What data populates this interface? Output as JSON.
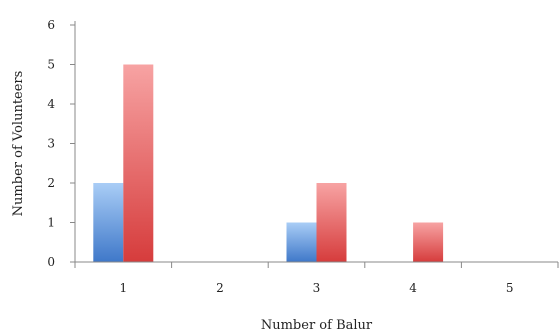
{
  "chart_data": {
    "type": "bar",
    "categories": [
      "1",
      "2",
      "3",
      "4",
      "5"
    ],
    "series": [
      {
        "values": [
          2,
          0,
          1,
          0,
          0
        ],
        "color": "#4f81bd"
      },
      {
        "values": [
          5,
          0,
          2,
          1,
          0
        ],
        "color": "#e05a5a"
      }
    ],
    "xlabel": "Number of Balur",
    "ylabel": "Number of Volunteers",
    "ylim": [
      0,
      6
    ],
    "yticks": [
      "0",
      "1",
      "2",
      "3",
      "4",
      "5",
      "6"
    ],
    "grid": false
  }
}
